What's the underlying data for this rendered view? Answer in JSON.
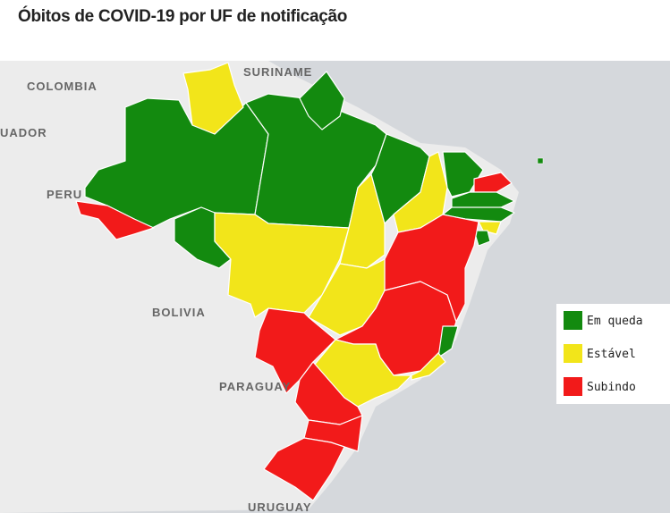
{
  "header": {
    "title": "Óbitos de COVID-19 por UF de notificação"
  },
  "map": {
    "labels": [
      "COLOMBIA",
      "SURINAME",
      "UADOR",
      "PERU",
      "BOLIVIA",
      "PARAGUAY",
      "URUGUAY"
    ],
    "legend": [
      {
        "label": "Em queda",
        "color": "#138a0f"
      },
      {
        "label": "Estável",
        "color": "#f2e51a"
      },
      {
        "label": "Subindo",
        "color": "#f21a1a"
      }
    ]
  }
}
